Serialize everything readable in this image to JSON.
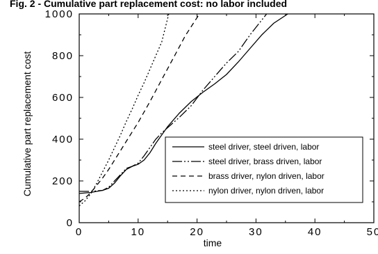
{
  "chart_data": {
    "type": "line",
    "title": "Fig. 2 - Cumulative part replacement cost: no labor included",
    "xlabel": "time",
    "ylabel": "Cumulative part replacement cost",
    "xlim": [
      0,
      50
    ],
    "ylim": [
      0,
      1000
    ],
    "x_ticks": [
      "0",
      "10",
      "20",
      "30",
      "40",
      "50"
    ],
    "y_ticks": [
      "0",
      "200",
      "400",
      "600",
      "800",
      "1000"
    ],
    "grid": false,
    "legend_position": "lower-right",
    "series": [
      {
        "name": "steel driver, steel driven, labor",
        "dash": "solid",
        "x": [
          0,
          2,
          4,
          5,
          6,
          7,
          8,
          9,
          10,
          11,
          12,
          13,
          14,
          15,
          17,
          19,
          21,
          23,
          25,
          27,
          29,
          31,
          33,
          35.4
        ],
        "y": [
          140,
          145,
          155,
          165,
          190,
          225,
          255,
          270,
          280,
          300,
          335,
          380,
          420,
          460,
          525,
          580,
          625,
          665,
          710,
          770,
          835,
          900,
          955,
          1000
        ]
      },
      {
        "name": "steel driver, brass driven, labor",
        "dash": "dash-dot-dot",
        "x": [
          0,
          2,
          4,
          5,
          6,
          7,
          8,
          9,
          10,
          11,
          12,
          13,
          14,
          15,
          17,
          19,
          21,
          23,
          25,
          27,
          29,
          31.8
        ],
        "y": [
          150,
          150,
          155,
          170,
          200,
          230,
          260,
          270,
          285,
          320,
          360,
          400,
          430,
          455,
          505,
          560,
          635,
          700,
          765,
          820,
          900,
          1000
        ]
      },
      {
        "name": "brass driver, nylon driven, labor",
        "dash": "dash",
        "x": [
          0,
          1,
          2,
          3,
          4,
          5,
          6,
          7,
          8,
          10,
          12,
          14,
          16,
          18,
          20.4
        ],
        "y": [
          100,
          118,
          145,
          180,
          215,
          255,
          300,
          345,
          390,
          480,
          580,
          685,
          790,
          895,
          1000
        ]
      },
      {
        "name": "nylon driver, nylon driven, labor",
        "dash": "dot",
        "x": [
          0,
          1,
          2,
          3,
          4,
          5,
          6,
          7,
          8,
          9,
          10,
          11,
          12,
          13,
          14,
          15.2
        ],
        "y": [
          80,
          105,
          140,
          190,
          245,
          300,
          360,
          420,
          485,
          545,
          610,
          670,
          735,
          800,
          865,
          1000
        ]
      }
    ]
  }
}
